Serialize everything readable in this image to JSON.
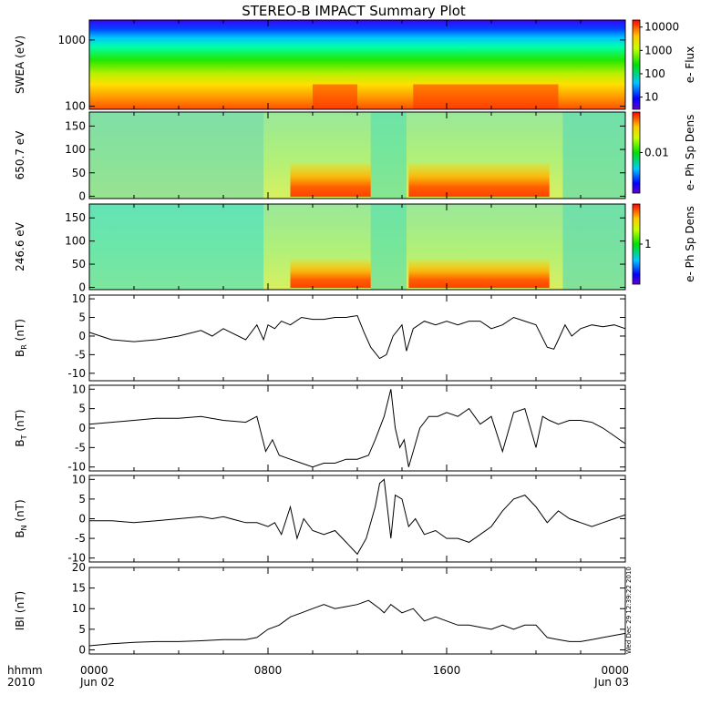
{
  "title": "STEREO-B IMPACT Summary Plot",
  "time_axis": {
    "corner_labels": [
      "hhmm",
      "2010"
    ],
    "ticks": [
      {
        "t": 0,
        "lines": [
          "0000",
          "Jun 02"
        ]
      },
      {
        "t": 8,
        "lines": [
          "0800"
        ]
      },
      {
        "t": 16,
        "lines": [
          "1600"
        ]
      },
      {
        "t": 24,
        "lines": [
          "0000",
          "Jun 03"
        ]
      }
    ]
  },
  "timestamp_stamp": "Wed Dec 29 12:39:22 2010",
  "chart_data": [
    {
      "type": "heatmap",
      "ylabel": "SWEA (eV)",
      "yscale": "log",
      "ylim": [
        90,
        2000
      ],
      "y_ticks": [
        {
          "v": 100,
          "label": "100"
        },
        {
          "v": 1000,
          "label": "1000"
        }
      ],
      "colorbar": {
        "label": "e- Flux",
        "scale": "log",
        "range": [
          3,
          20000
        ],
        "ticks": [
          {
            "v": 10,
            "label": "10"
          },
          {
            "v": 100,
            "label": "100"
          },
          {
            "v": 1000,
            "label": "1000"
          },
          {
            "v": 10000,
            "label": "10000"
          }
        ]
      },
      "description_peak_hours": [
        [
          10,
          12
        ],
        [
          14.5,
          21
        ]
      ]
    },
    {
      "type": "heatmap",
      "ylabel": "650.7 eV",
      "ylim": [
        -5,
        180
      ],
      "y_ticks": [
        {
          "v": 0,
          "label": "0"
        },
        {
          "v": 50,
          "label": "50"
        },
        {
          "v": 100,
          "label": "100"
        },
        {
          "v": 150,
          "label": "150"
        }
      ],
      "colorbar": {
        "label": "e- Ph Sp Dens",
        "scale": "log",
        "range": [
          0.0005,
          0.2
        ],
        "ticks": [
          {
            "v": 0.01,
            "label": "0.01"
          }
        ]
      }
    },
    {
      "type": "heatmap",
      "ylabel": "246.6 eV",
      "ylim": [
        -5,
        180
      ],
      "y_ticks": [
        {
          "v": 0,
          "label": "0"
        },
        {
          "v": 50,
          "label": "50"
        },
        {
          "v": 100,
          "label": "100"
        },
        {
          "v": 150,
          "label": "150"
        }
      ],
      "colorbar": {
        "label": "e- Ph Sp Dens",
        "scale": "log",
        "range": [
          0.05,
          20
        ],
        "ticks": [
          {
            "v": 1,
            "label": "1"
          }
        ]
      }
    },
    {
      "type": "line",
      "ylabel": "B_R (nT)",
      "ylim": [
        -12,
        11
      ],
      "y_ticks": [
        -10,
        -5,
        0,
        5,
        10
      ],
      "x_hours": [
        0,
        0.5,
        1,
        2,
        3,
        4,
        5,
        5.5,
        6,
        7,
        7.5,
        7.8,
        8,
        8.3,
        8.6,
        9,
        9.5,
        10,
        10.5,
        11,
        11.5,
        12,
        12.3,
        12.6,
        13,
        13.3,
        13.6,
        14,
        14.2,
        14.5,
        15,
        15.5,
        16,
        16.5,
        17,
        17.5,
        18,
        18.5,
        19,
        19.5,
        20,
        20.5,
        20.8,
        21,
        21.3,
        21.6,
        22,
        22.5,
        23,
        23.5,
        24
      ],
      "values": [
        1,
        0,
        -1,
        -1.5,
        -1,
        0,
        1.5,
        0,
        2,
        -1,
        3,
        -1,
        3,
        2,
        4,
        3,
        5,
        4.5,
        4.5,
        5,
        5,
        5.5,
        1,
        -3,
        -6,
        -5,
        0,
        3,
        -4,
        2,
        4,
        3,
        4,
        3,
        4,
        4,
        2,
        3,
        5,
        4,
        3,
        -3,
        -3.5,
        -1,
        3,
        0,
        2,
        3,
        2.5,
        3,
        2
      ]
    },
    {
      "type": "line",
      "ylabel": "B_T (nT)",
      "ylim": [
        -11,
        11
      ],
      "y_ticks": [
        -10,
        -5,
        0,
        5,
        10
      ],
      "x_hours": [
        0,
        1,
        2,
        3,
        4,
        5,
        6,
        7,
        7.5,
        7.9,
        8.2,
        8.5,
        9,
        9.5,
        10,
        10.5,
        11,
        11.5,
        12,
        12.5,
        12.8,
        13.2,
        13.5,
        13.7,
        13.9,
        14.1,
        14.3,
        14.5,
        14.8,
        15.2,
        15.6,
        16,
        16.5,
        17,
        17.5,
        18,
        18.5,
        19,
        19.5,
        20,
        20.3,
        20.6,
        21,
        21.5,
        22,
        22.5,
        23,
        23.5,
        24
      ],
      "values": [
        1,
        1.5,
        2,
        2.5,
        2.5,
        3,
        2,
        1.5,
        3,
        -6,
        -3,
        -7,
        -8,
        -9,
        -10,
        -9,
        -9,
        -8,
        -8,
        -7,
        -3,
        3,
        10,
        0,
        -5,
        -3,
        -10,
        -6,
        0,
        3,
        3,
        4,
        3,
        5,
        1,
        3,
        -6,
        4,
        5,
        -5,
        3,
        2,
        1,
        2,
        2,
        1.5,
        0,
        -2,
        -4
      ]
    },
    {
      "type": "line",
      "ylabel": "B_N (nT)",
      "ylim": [
        -11,
        11
      ],
      "y_ticks": [
        -10,
        -5,
        0,
        5,
        10
      ],
      "x_hours": [
        0,
        1,
        2,
        3,
        4,
        5,
        5.5,
        6,
        7,
        7.5,
        8,
        8.3,
        8.6,
        9,
        9.3,
        9.6,
        10,
        10.5,
        11,
        11.5,
        12,
        12.4,
        12.8,
        13,
        13.2,
        13.5,
        13.7,
        14,
        14.3,
        14.6,
        15,
        15.5,
        16,
        16.5,
        17,
        17.5,
        18,
        18.5,
        19,
        19.5,
        20,
        20.5,
        21,
        21.5,
        22,
        22.5,
        23,
        23.5,
        24
      ],
      "values": [
        -0.5,
        -0.5,
        -1,
        -0.5,
        0,
        0.5,
        0,
        0.5,
        -1,
        -1,
        -2,
        -1,
        -4,
        3,
        -5,
        0,
        -3,
        -4,
        -3,
        -6,
        -9,
        -5,
        3,
        9,
        10,
        -5,
        6,
        5,
        -2,
        0,
        -4,
        -3,
        -5,
        -5,
        -6,
        -4,
        -2,
        2,
        5,
        6,
        3,
        -1,
        2,
        0,
        -1,
        -2,
        -1,
        0,
        1
      ]
    },
    {
      "type": "line",
      "ylabel": "|B| (nT)",
      "ylim": [
        -1,
        20
      ],
      "y_ticks": [
        0,
        5,
        10,
        15,
        20
      ],
      "x_hours": [
        0,
        1,
        2,
        3,
        4,
        5,
        6,
        7,
        7.5,
        8,
        8.5,
        9,
        9.5,
        10,
        10.5,
        11,
        11.5,
        12,
        12.5,
        13,
        13.2,
        13.5,
        14,
        14.5,
        15,
        15.5,
        16,
        16.5,
        17,
        17.5,
        18,
        18.5,
        19,
        19.5,
        20,
        20.5,
        21,
        21.5,
        22,
        22.5,
        23,
        23.5,
        24
      ],
      "values": [
        1,
        1.5,
        1.8,
        2,
        2,
        2.2,
        2.5,
        2.5,
        3,
        5,
        6,
        8,
        9,
        10,
        11,
        10,
        10.5,
        11,
        12,
        10,
        9,
        11,
        9,
        10,
        7,
        8,
        7,
        6,
        6,
        5.5,
        5,
        6,
        5,
        6,
        6,
        3,
        2.5,
        2,
        2,
        2.5,
        3,
        3.5,
        4
      ]
    }
  ]
}
